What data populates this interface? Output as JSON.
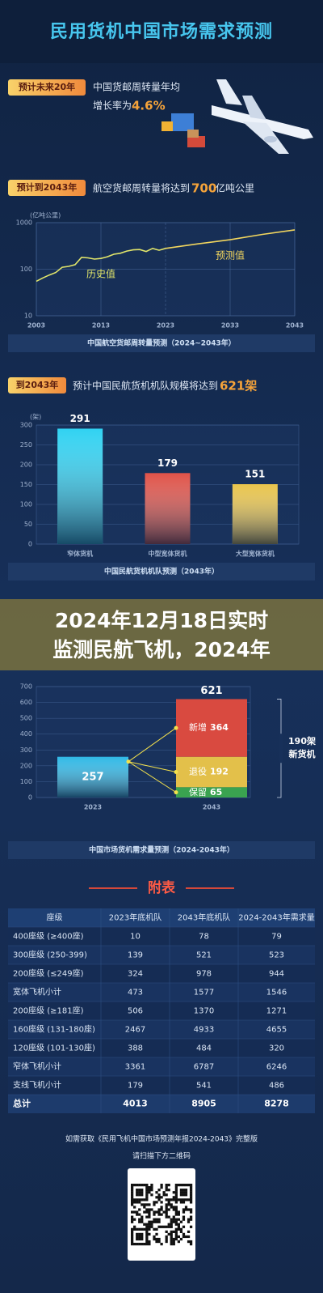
{
  "title": "民用货机中国市场需求预测",
  "growth": {
    "badge": "预计未来20年",
    "line1": "中国货邮周转量年均",
    "line2": "增长率为",
    "rate": "4.6%"
  },
  "volume": {
    "badge": "预计到2043年",
    "text": "航空货邮周转量将达到",
    "amount": "700",
    "unit": "亿吨公里"
  },
  "fleet": {
    "badge": "到2043年",
    "text": "预计中国民航货机机队规模将达到",
    "amount": "621架"
  },
  "chart_data": [
    {
      "type": "line",
      "y_label": "(亿吨公里)",
      "caption": "中国航空货邮周转量预测（2024~2043年）",
      "log_y": true,
      "grid": true,
      "xlim": [
        2003,
        2043
      ],
      "xticks": [
        2003,
        2013,
        2023,
        2033,
        2043
      ],
      "ylim": [
        10,
        1000
      ],
      "yticks": [
        10,
        100,
        1000
      ],
      "series": [
        {
          "name": "历史值",
          "color": "#e2e66a",
          "x": [
            2003,
            2004,
            2005,
            2006,
            2007,
            2008,
            2009,
            2010,
            2011,
            2012,
            2013,
            2014,
            2015,
            2016,
            2017,
            2018,
            2019,
            2020,
            2021,
            2022,
            2023
          ],
          "values": [
            55,
            65,
            75,
            85,
            110,
            115,
            125,
            180,
            175,
            165,
            170,
            185,
            210,
            220,
            245,
            260,
            265,
            240,
            280,
            255,
            280
          ]
        },
        {
          "name": "预测值",
          "color": "#f2d65e",
          "x": [
            2023,
            2028,
            2033,
            2038,
            2043
          ],
          "values": [
            280,
            350,
            430,
            560,
            700
          ]
        }
      ]
    },
    {
      "type": "bar",
      "y_label": "(架)",
      "caption": "中国民航货机机队预测（2043年）",
      "categories": [
        "窄体货机",
        "中型宽体货机",
        "大型宽体货机"
      ],
      "values": [
        291,
        179,
        151
      ],
      "colors": [
        "#31d2f2",
        "#e05248",
        "#e8c44c"
      ],
      "ylim": [
        0,
        300
      ],
      "yticks": [
        0,
        50,
        100,
        150,
        200,
        250,
        300
      ],
      "grid": true
    },
    {
      "type": "stacked_bar",
      "caption": "中国市场货机需求量预测（2024-2043年）",
      "categories": [
        "2023",
        "2043"
      ],
      "bars": [
        {
          "value": 257,
          "color": "#2fb8e6"
        },
        {
          "total": 621,
          "segments": [
            {
              "name": "保留",
              "value": 65,
              "color": "#3aa350"
            },
            {
              "name": "退役",
              "value": 192,
              "color": "#e3c04a"
            },
            {
              "name": "新增",
              "value": 364,
              "color": "#d94a40"
            }
          ]
        }
      ],
      "bracket_label": [
        "190架",
        "新货机"
      ],
      "ylim": [
        0,
        700
      ],
      "yticks": [
        0,
        100,
        200,
        300,
        400,
        500,
        600,
        700
      ],
      "grid": true
    }
  ],
  "banner": [
    "2024年12月18日实时",
    "监测民航飞机，2024年"
  ],
  "table": {
    "title": "附表",
    "header": [
      "座级",
      "2023年底机队",
      "2043年底机队",
      "2024-2043年需求量"
    ],
    "rows": [
      [
        "400座级 (≥400座)",
        10,
        78,
        79
      ],
      [
        "300座级 (250-399)",
        139,
        521,
        523
      ],
      [
        "200座级 (≤249座)",
        324,
        978,
        944
      ],
      [
        "宽体飞机小计",
        473,
        1577,
        1546
      ],
      [
        "200座级 (≥181座)",
        506,
        1370,
        1271
      ],
      [
        "160座级 (131-180座)",
        2467,
        4933,
        4655
      ],
      [
        "120座级 (101-130座)",
        388,
        484,
        320
      ],
      [
        "窄体飞机小计",
        3361,
        6787,
        6246
      ],
      [
        "支线飞机小计",
        179,
        541,
        486
      ],
      [
        "总计",
        4013,
        8905,
        8278
      ]
    ]
  },
  "footer": [
    "如需获取《民用飞机中国市场预测年报2024-2043》完整版",
    "请扫描下方二维码"
  ]
}
